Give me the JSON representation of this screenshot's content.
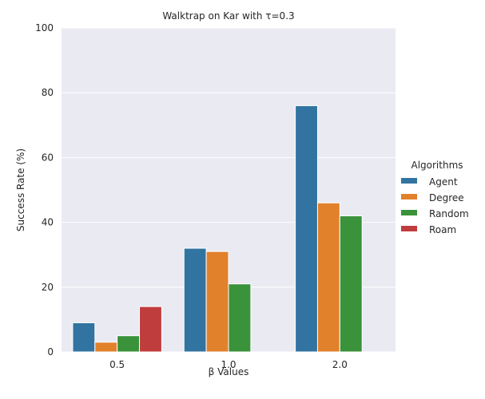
{
  "chart_data": {
    "type": "bar",
    "title": "Walktrap on Kar with τ=0.3",
    "xlabel": "β Values",
    "ylabel": "Success Rate (%)",
    "categories": [
      "0.5",
      "1.0",
      "2.0"
    ],
    "ylim": [
      0,
      100
    ],
    "yticks": [
      0,
      20,
      40,
      60,
      80,
      100
    ],
    "grid": true,
    "legend_title": "Algorithms",
    "legend_position": "right",
    "series": [
      {
        "name": "Agent",
        "color": "#3274a1",
        "values": [
          9,
          32,
          76
        ]
      },
      {
        "name": "Degree",
        "color": "#e1812c",
        "values": [
          3,
          31,
          46
        ]
      },
      {
        "name": "Random",
        "color": "#3a923a",
        "values": [
          5,
          21,
          42
        ]
      },
      {
        "name": "Roam",
        "color": "#c03d3e",
        "values": [
          14,
          null,
          null
        ]
      }
    ]
  }
}
